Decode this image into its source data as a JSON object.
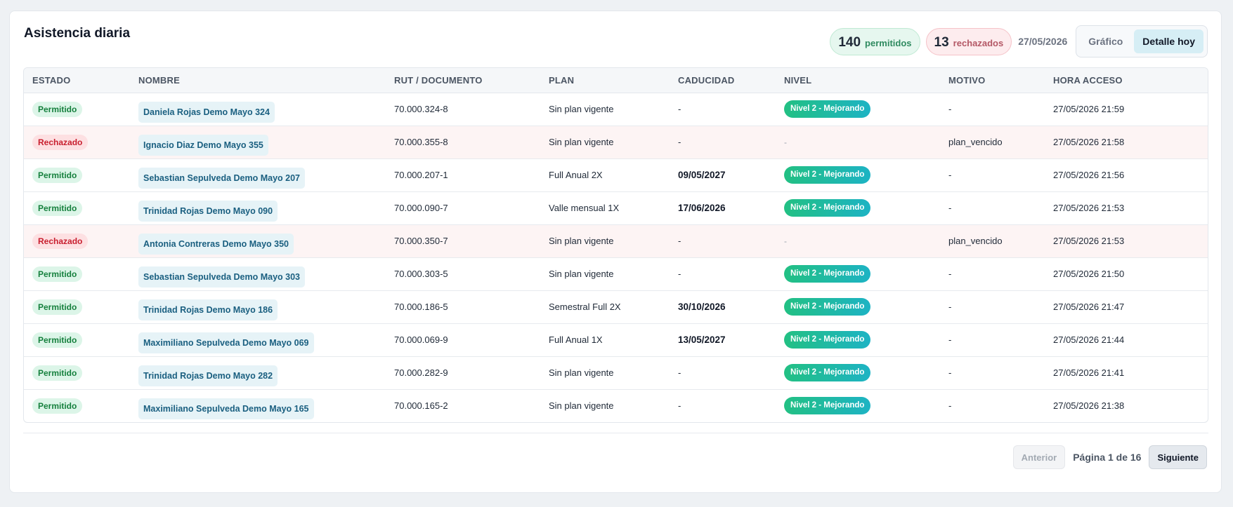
{
  "title": "Asistencia diaria",
  "summary": {
    "allowed_count": "140",
    "allowed_label": "permitidos",
    "rejected_count": "13",
    "rejected_label": "rechazados",
    "date": "27/05/2026",
    "view_tabs": [
      "Gráfico",
      "Detalle hoy"
    ],
    "active_tab": "Detalle hoy"
  },
  "table": {
    "columns": [
      "ESTADO",
      "NOMBRE",
      "RUT / DOCUMENTO",
      "PLAN",
      "CADUCIDAD",
      "NIVEL",
      "MOTIVO",
      "HORA ACCESO"
    ],
    "rows": [
      {
        "status": "Permitido",
        "name": "Daniela Rojas Demo Mayo 324",
        "rut": "70.000.324-8",
        "plan": "Sin plan vigente",
        "expiry": "-",
        "level": "Nivel 2 - Mejorando",
        "reason": "-",
        "time": "27/05/2026 21:59"
      },
      {
        "status": "Rechazado",
        "name": "Ignacio Diaz Demo Mayo 355",
        "rut": "70.000.355-8",
        "plan": "Sin plan vigente",
        "expiry": "-",
        "level": "-",
        "reason": "plan_vencido",
        "time": "27/05/2026 21:58"
      },
      {
        "status": "Permitido",
        "name": "Sebastian Sepulveda Demo Mayo 207",
        "rut": "70.000.207-1",
        "plan": "Full Anual 2X",
        "expiry": "09/05/2027",
        "level": "Nivel 2 - Mejorando",
        "reason": "-",
        "time": "27/05/2026 21:56"
      },
      {
        "status": "Permitido",
        "name": "Trinidad Rojas Demo Mayo 090",
        "rut": "70.000.090-7",
        "plan": "Valle mensual 1X",
        "expiry": "17/06/2026",
        "level": "Nivel 2 - Mejorando",
        "reason": "-",
        "time": "27/05/2026 21:53"
      },
      {
        "status": "Rechazado",
        "name": "Antonia Contreras Demo Mayo 350",
        "rut": "70.000.350-7",
        "plan": "Sin plan vigente",
        "expiry": "-",
        "level": "-",
        "reason": "plan_vencido",
        "time": "27/05/2026 21:53"
      },
      {
        "status": "Permitido",
        "name": "Sebastian Sepulveda Demo Mayo 303",
        "rut": "70.000.303-5",
        "plan": "Sin plan vigente",
        "expiry": "-",
        "level": "Nivel 2 - Mejorando",
        "reason": "-",
        "time": "27/05/2026 21:50"
      },
      {
        "status": "Permitido",
        "name": "Trinidad Rojas Demo Mayo 186",
        "rut": "70.000.186-5",
        "plan": "Semestral Full 2X",
        "expiry": "30/10/2026",
        "level": "Nivel 2 - Mejorando",
        "reason": "-",
        "time": "27/05/2026 21:47"
      },
      {
        "status": "Permitido",
        "name": "Maximiliano Sepulveda Demo Mayo 069",
        "rut": "70.000.069-9",
        "plan": "Full Anual 1X",
        "expiry": "13/05/2027",
        "level": "Nivel 2 - Mejorando",
        "reason": "-",
        "time": "27/05/2026 21:44"
      },
      {
        "status": "Permitido",
        "name": "Trinidad Rojas Demo Mayo 282",
        "rut": "70.000.282-9",
        "plan": "Sin plan vigente",
        "expiry": "-",
        "level": "Nivel 2 - Mejorando",
        "reason": "-",
        "time": "27/05/2026 21:41"
      },
      {
        "status": "Permitido",
        "name": "Maximiliano Sepulveda Demo Mayo 165",
        "rut": "70.000.165-2",
        "plan": "Sin plan vigente",
        "expiry": "-",
        "level": "Nivel 2 - Mejorando",
        "reason": "-",
        "time": "27/05/2026 21:38"
      }
    ]
  },
  "pagination": {
    "prev_label": "Anterior",
    "info": "Página 1 de 16",
    "next_label": "Siguiente"
  },
  "colors": {
    "allowed": "#15803d",
    "rejected": "#c81e2e",
    "level_gradient_start": "#22c083",
    "level_gradient_end": "#1db3c4",
    "name_chip_bg": "#e6f3f7"
  }
}
